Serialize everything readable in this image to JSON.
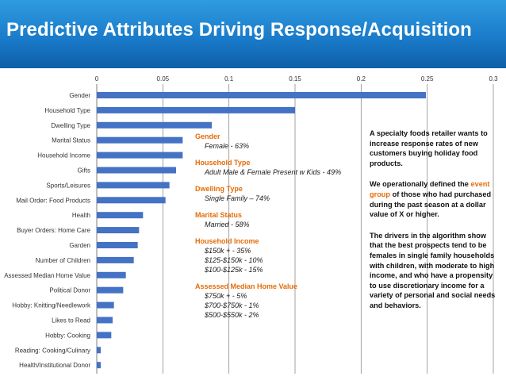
{
  "header": {
    "title": "Predictive Attributes Driving Response/Acquisition"
  },
  "chart_data": {
    "type": "bar",
    "orientation": "horizontal",
    "categories": [
      "Gender",
      "Household Type",
      "Dwelling Type",
      "Marital Status",
      "Household Income",
      "Gifts",
      "Sports/Leisures",
      "Mail Order: Food Products",
      "Health",
      "Buyer Orders: Home Care",
      "Garden",
      "Number of Children",
      "Assessed Median Home Value",
      "Political Donor",
      "Hobby: Knitting/Needlework",
      "Likes to Read",
      "Hobby: Cooking",
      "Reading: Cooking/Culinary",
      "Health/Institutional Donor"
    ],
    "values": [
      0.249,
      0.15,
      0.087,
      0.065,
      0.065,
      0.06,
      0.055,
      0.052,
      0.035,
      0.032,
      0.031,
      0.028,
      0.022,
      0.02,
      0.013,
      0.012,
      0.011,
      0.003,
      0.003
    ],
    "xticks": [
      "0",
      "0.05",
      "0.1",
      "0.15",
      "0.2",
      "0.25",
      "0.3"
    ],
    "xlim": [
      0,
      0.3
    ],
    "grid": "vertical",
    "bar_color": "#4472c4"
  },
  "attributes": [
    {
      "name": "Gender",
      "values": [
        "Female - 63%"
      ]
    },
    {
      "name": "Household Type",
      "values": [
        "Adult Male & Female Present w Kids - 49%"
      ]
    },
    {
      "name": "Dwelling Type",
      "values": [
        "Single Family – 74%"
      ]
    },
    {
      "name": "Marital Status",
      "values": [
        "Married - 58%"
      ]
    },
    {
      "name": "Household Income",
      "values": [
        "$150k + - 35%",
        "$125-$150k - 10%",
        "$100-$125k - 15%"
      ]
    },
    {
      "name": "Assessed Median Home Value",
      "values": [
        "$750k + - 5%",
        "$700-$750k - 1%",
        "$500-$550k - 2%"
      ]
    }
  ],
  "notes": {
    "p1": "A specialty foods retailer wants to increase response rates of new customers buying holiday food products.",
    "p2_before": "We operationally defined the ",
    "p2_highlight": "event group",
    "p2_after": " of those who had purchased during the past season at a dollar value of X or higher.",
    "p3": "The drivers in the algorithm show that the best prospects tend to be females in single family households with children, with moderate to high income, and who have a propensity to use discretionary income for a variety of personal and social needs and behaviors."
  }
}
